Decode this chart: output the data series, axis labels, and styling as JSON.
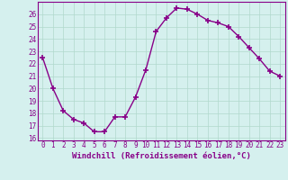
{
  "x": [
    0,
    1,
    2,
    3,
    4,
    5,
    6,
    7,
    8,
    9,
    10,
    11,
    12,
    13,
    14,
    15,
    16,
    17,
    18,
    19,
    20,
    21,
    22,
    23
  ],
  "y": [
    22.5,
    20.0,
    18.2,
    17.5,
    17.2,
    16.5,
    16.5,
    17.7,
    17.7,
    19.3,
    21.5,
    24.6,
    25.7,
    26.5,
    26.4,
    26.0,
    25.5,
    25.3,
    25.0,
    24.2,
    23.3,
    22.4,
    21.4,
    21.0
  ],
  "line_color": "#880088",
  "marker": "+",
  "markersize": 4,
  "markeredgewidth": 1.2,
  "linewidth": 1.0,
  "xlim": [
    -0.5,
    23.5
  ],
  "ylim": [
    15.8,
    27.0
  ],
  "yticks": [
    16,
    17,
    18,
    19,
    20,
    21,
    22,
    23,
    24,
    25,
    26
  ],
  "xticks": [
    0,
    1,
    2,
    3,
    4,
    5,
    6,
    7,
    8,
    9,
    10,
    11,
    12,
    13,
    14,
    15,
    16,
    17,
    18,
    19,
    20,
    21,
    22,
    23
  ],
  "xlabel": "Windchill (Refroidissement éolien,°C)",
  "background_color": "#d5f0ee",
  "grid_color": "#b0d8cc",
  "tick_fontsize": 5.5,
  "label_fontsize": 6.5
}
